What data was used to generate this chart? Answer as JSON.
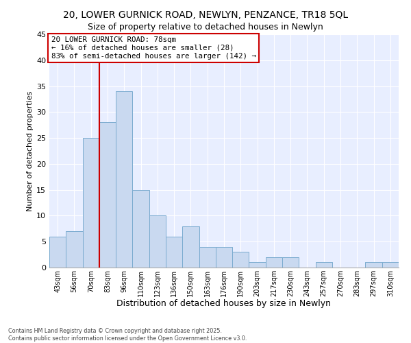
{
  "title": "20, LOWER GURNICK ROAD, NEWLYN, PENZANCE, TR18 5QL",
  "subtitle": "Size of property relative to detached houses in Newlyn",
  "xlabel": "Distribution of detached houses by size in Newlyn",
  "ylabel": "Number of detached properties",
  "bar_labels": [
    "43sqm",
    "56sqm",
    "70sqm",
    "83sqm",
    "96sqm",
    "110sqm",
    "123sqm",
    "136sqm",
    "150sqm",
    "163sqm",
    "176sqm",
    "190sqm",
    "203sqm",
    "217sqm",
    "230sqm",
    "243sqm",
    "257sqm",
    "270sqm",
    "283sqm",
    "297sqm",
    "310sqm"
  ],
  "bar_values": [
    6,
    7,
    25,
    28,
    34,
    15,
    10,
    6,
    8,
    4,
    4,
    3,
    1,
    2,
    2,
    0,
    1,
    0,
    0,
    1,
    1
  ],
  "bar_color": "#c9d9f0",
  "bar_edge_color": "#7aabcf",
  "vline_color": "#cc0000",
  "annotation_title": "20 LOWER GURNICK ROAD: 78sqm",
  "annotation_line1": "← 16% of detached houses are smaller (28)",
  "annotation_line2": "83% of semi-detached houses are larger (142) →",
  "annotation_box_color": "#ffffff",
  "annotation_box_edge": "#cc0000",
  "ylim": [
    0,
    45
  ],
  "yticks": [
    0,
    5,
    10,
    15,
    20,
    25,
    30,
    35,
    40,
    45
  ],
  "background_color": "#ffffff",
  "plot_bg_color": "#e8eeff",
  "grid_color": "#ffffff",
  "footer_line1": "Contains HM Land Registry data © Crown copyright and database right 2025.",
  "footer_line2": "Contains public sector information licensed under the Open Government Licence v3.0.",
  "title_fontsize": 10,
  "subtitle_fontsize": 9,
  "xlabel_fontsize": 9,
  "ylabel_fontsize": 8
}
